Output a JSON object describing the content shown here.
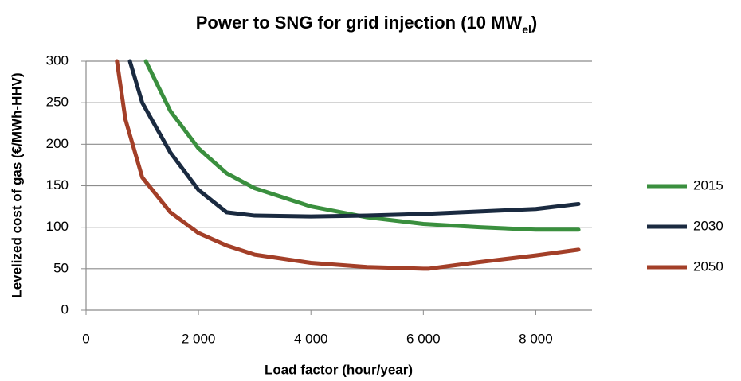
{
  "chart_data": {
    "type": "line",
    "title_parts": [
      "Power to SNG for grid injection (10 MW",
      "el",
      ")"
    ],
    "x_label": "Load factor (hour/year)",
    "y_label": "Levelized cost  of gas (€/MWh-HHV)",
    "xlim": [
      0,
      9000
    ],
    "xticks": [
      0,
      {
        "value": 2000,
        "label": "2 000"
      },
      {
        "value": 4000,
        "label": "4 000"
      },
      {
        "value": 6000,
        "label": "6 000"
      },
      {
        "value": 8000,
        "label": "8 000"
      }
    ],
    "ylim": [
      0,
      300
    ],
    "yticks": [
      0,
      50,
      100,
      150,
      200,
      250,
      300
    ],
    "grid": true,
    "legend": "right",
    "series": [
      {
        "name": "2015",
        "color": "#3a8f3e",
        "x": [
          1064,
          1500,
          2000,
          2500,
          3000,
          4000,
          5000,
          6000,
          7000,
          8000,
          8760
        ],
        "values": [
          300,
          240,
          195,
          165,
          147,
          125,
          112,
          104,
          100,
          97,
          97
        ]
      },
      {
        "name": "2030",
        "color": "#1a2a40",
        "x": [
          780,
          1000,
          1500,
          2000,
          2500,
          3000,
          4000,
          5000,
          6000,
          7000,
          8000,
          8760
        ],
        "values": [
          300,
          250,
          190,
          145,
          118,
          114,
          113,
          114,
          116,
          119,
          122,
          128
        ]
      },
      {
        "name": "2050",
        "color": "#a33f28",
        "x": [
          550,
          700,
          1000,
          1500,
          2000,
          2500,
          3000,
          4000,
          5000,
          6000,
          6100,
          7000,
          8000,
          8760
        ],
        "values": [
          300,
          230,
          160,
          118,
          93,
          78,
          67,
          57,
          52,
          50,
          50,
          58,
          66,
          73
        ]
      }
    ]
  }
}
